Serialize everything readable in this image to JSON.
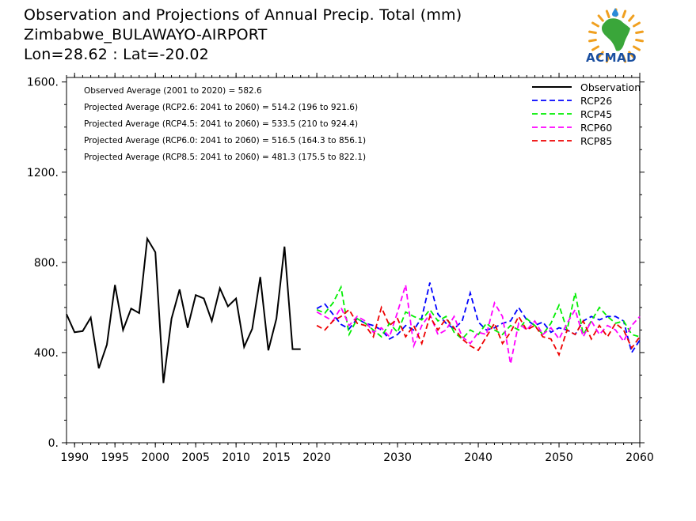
{
  "header": {
    "title_line1": "Observation and Projections of Annual Precip. Total (mm)",
    "title_line2": "Zimbabwe_BULAWAYO-AIRPORT",
    "title_line3": "Lon=28.62 : Lat=-20.02"
  },
  "logo": {
    "text": "ACMAD",
    "icon": "africa-map-logo-icon",
    "colors": {
      "map": "#3aa63a",
      "rays": "#f0a020",
      "drop": "#2a8ad8",
      "text": "#1a4fa0"
    }
  },
  "annotations": [
    "Observed Average (2001 to 2020) = 582.6",
    "Projected Average (RCP2.6: 2041 to 2060) = 514.2 (196 to 921.6)",
    "Projected Average (RCP4.5: 2041 to 2060) = 533.5 (210 to 924.4)",
    "Projected Average (RCP6.0: 2041 to 2060) = 516.5 (164.3 to 856.1)",
    "Projected Average (RCP8.5: 2041 to 2060) = 481.3 (175.5 to 822.1)"
  ],
  "chart_data": {
    "type": "line",
    "title": "Observation and Projections of Annual Precip. Total (mm)",
    "xlim": [
      1989,
      2060
    ],
    "ylim": [
      0,
      1620
    ],
    "x_ticks": [
      1990,
      1995,
      2000,
      2005,
      2010,
      2015,
      2020,
      2030,
      2040,
      2050,
      2060
    ],
    "x_tick_labels": [
      "1990",
      "1995",
      "2000",
      "2005",
      "2010",
      "2015",
      "2020",
      "2030",
      "2040",
      "2050",
      "2060"
    ],
    "y_ticks": [
      0,
      400,
      800,
      1200,
      1600
    ],
    "y_tick_labels": [
      "0.",
      "400.",
      "800.",
      "1200.",
      "1600."
    ],
    "legend_position": "top-right",
    "series": [
      {
        "name": "Observation",
        "color": "#000000",
        "dash": "solid",
        "x": [
          1989,
          1990,
          1991,
          1992,
          1993,
          1994,
          1995,
          1996,
          1997,
          1998,
          1999,
          2000,
          2001,
          2002,
          2003,
          2004,
          2005,
          2006,
          2007,
          2008,
          2009,
          2010,
          2011,
          2012,
          2013,
          2014,
          2015,
          2016,
          2017,
          2018,
          2019,
          2020
        ],
        "values": [
          570,
          490,
          495,
          555,
          330,
          435,
          700,
          500,
          595,
          575,
          905,
          845,
          265,
          550,
          680,
          510,
          655,
          640,
          540,
          685,
          605,
          640,
          425,
          505,
          735,
          410,
          550,
          870,
          415,
          415,
          null,
          null
        ]
      },
      {
        "name": "RCP26",
        "color": "#0000ff",
        "dash": "dashed",
        "x": [
          2020,
          2021,
          2022,
          2023,
          2024,
          2025,
          2026,
          2027,
          2028,
          2029,
          2030,
          2031,
          2032,
          2033,
          2034,
          2035,
          2036,
          2037,
          2038,
          2039,
          2040,
          2041,
          2042,
          2043,
          2044,
          2045,
          2046,
          2047,
          2048,
          2049,
          2050,
          2051,
          2052,
          2053,
          2054,
          2055,
          2056,
          2057,
          2058,
          2059,
          2060
        ],
        "values": [
          595,
          615,
          570,
          525,
          505,
          550,
          530,
          520,
          500,
          460,
          480,
          520,
          500,
          555,
          710,
          570,
          530,
          505,
          540,
          665,
          535,
          500,
          510,
          530,
          540,
          600,
          545,
          520,
          535,
          490,
          510,
          500,
          480,
          540,
          560,
          545,
          560,
          560,
          540,
          400,
          455
        ]
      },
      {
        "name": "RCP45",
        "color": "#00ee00",
        "dash": "dashed",
        "x": [
          2020,
          2021,
          2022,
          2023,
          2024,
          2025,
          2026,
          2027,
          2028,
          2029,
          2030,
          2031,
          2032,
          2033,
          2034,
          2035,
          2036,
          2037,
          2038,
          2039,
          2040,
          2041,
          2042,
          2043,
          2044,
          2045,
          2046,
          2047,
          2048,
          2049,
          2050,
          2051,
          2052,
          2053,
          2054,
          2055,
          2056,
          2057,
          2058,
          2059,
          2060
        ],
        "values": [
          590,
          575,
          620,
          690,
          480,
          550,
          530,
          500,
          470,
          530,
          490,
          580,
          560,
          545,
          590,
          540,
          560,
          490,
          460,
          500,
          480,
          530,
          500,
          480,
          520,
          500,
          550,
          520,
          480,
          530,
          610,
          500,
          665,
          480,
          540,
          600,
          560,
          530,
          540,
          480,
          470
        ]
      },
      {
        "name": "RCP60",
        "color": "#ff00ff",
        "dash": "dashed",
        "x": [
          2020,
          2021,
          2022,
          2023,
          2024,
          2025,
          2026,
          2027,
          2028,
          2029,
          2030,
          2031,
          2032,
          2033,
          2034,
          2035,
          2036,
          2037,
          2038,
          2039,
          2040,
          2041,
          2042,
          2043,
          2044,
          2045,
          2046,
          2047,
          2048,
          2049,
          2050,
          2051,
          2052,
          2053,
          2054,
          2055,
          2056,
          2057,
          2058,
          2059,
          2060
        ],
        "values": [
          580,
          560,
          540,
          600,
          520,
          560,
          540,
          490,
          510,
          470,
          580,
          700,
          430,
          520,
          570,
          480,
          500,
          560,
          470,
          440,
          490,
          480,
          620,
          560,
          350,
          530,
          500,
          540,
          480,
          510,
          460,
          530,
          590,
          470,
          540,
          480,
          520,
          500,
          450,
          520,
          560
        ]
      },
      {
        "name": "RCP85",
        "color": "#ee0000",
        "dash": "dashed",
        "x": [
          2020,
          2021,
          2022,
          2023,
          2024,
          2025,
          2026,
          2027,
          2028,
          2029,
          2030,
          2031,
          2032,
          2033,
          2034,
          2035,
          2036,
          2037,
          2038,
          2039,
          2040,
          2041,
          2042,
          2043,
          2044,
          2045,
          2046,
          2047,
          2048,
          2049,
          2050,
          2051,
          2052,
          2053,
          2054,
          2055,
          2056,
          2057,
          2058,
          2059,
          2060
        ],
        "values": [
          520,
          500,
          540,
          560,
          590,
          530,
          520,
          470,
          600,
          520,
          550,
          470,
          520,
          440,
          560,
          500,
          550,
          510,
          460,
          430,
          410,
          470,
          530,
          440,
          490,
          560,
          500,
          520,
          470,
          460,
          390,
          500,
          480,
          540,
          460,
          520,
          470,
          530,
          500,
          420,
          470
        ]
      }
    ]
  }
}
